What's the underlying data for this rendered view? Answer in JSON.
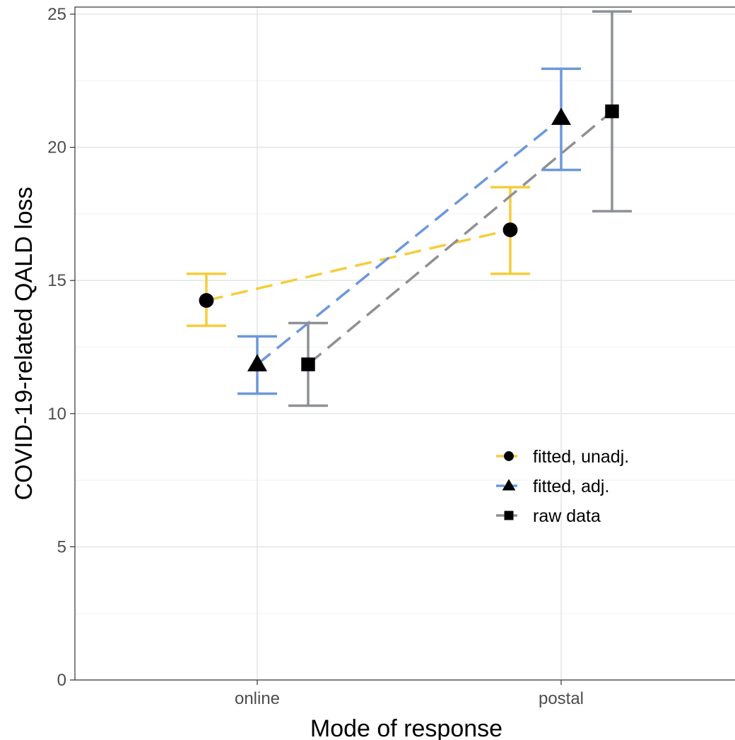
{
  "chart_data": {
    "type": "scatter",
    "xlabel": "Mode of response",
    "ylabel": "COVID-19-related QALD loss",
    "categories": [
      "online",
      "postal"
    ],
    "ylim": [
      0,
      25
    ],
    "yticks": [
      "0",
      "5",
      "10",
      "15",
      "20",
      "25"
    ],
    "grid": true,
    "legend_position": "bottom-right inside",
    "series": [
      {
        "name": "fitted, unadj.",
        "color": "#F5CD3B",
        "marker": "circle",
        "line": "dashed",
        "points": [
          {
            "x": "online",
            "y": 14.25,
            "lower": 13.3,
            "upper": 15.25
          },
          {
            "x": "postal",
            "y": 16.9,
            "lower": 15.25,
            "upper": 18.5
          }
        ]
      },
      {
        "name": "fitted, adj.",
        "color": "#6C97DB",
        "marker": "triangle",
        "line": "dashed",
        "points": [
          {
            "x": "online",
            "y": 11.85,
            "lower": 10.75,
            "upper": 12.9
          },
          {
            "x": "postal",
            "y": 21.1,
            "lower": 19.15,
            "upper": 22.95
          }
        ]
      },
      {
        "name": "raw data",
        "color": "#8D9095",
        "marker": "square",
        "line": "dashed",
        "points": [
          {
            "x": "online",
            "y": 11.85,
            "lower": 10.3,
            "upper": 13.4
          },
          {
            "x": "postal",
            "y": 21.35,
            "lower": 17.6,
            "upper": 25.1
          }
        ]
      }
    ]
  }
}
